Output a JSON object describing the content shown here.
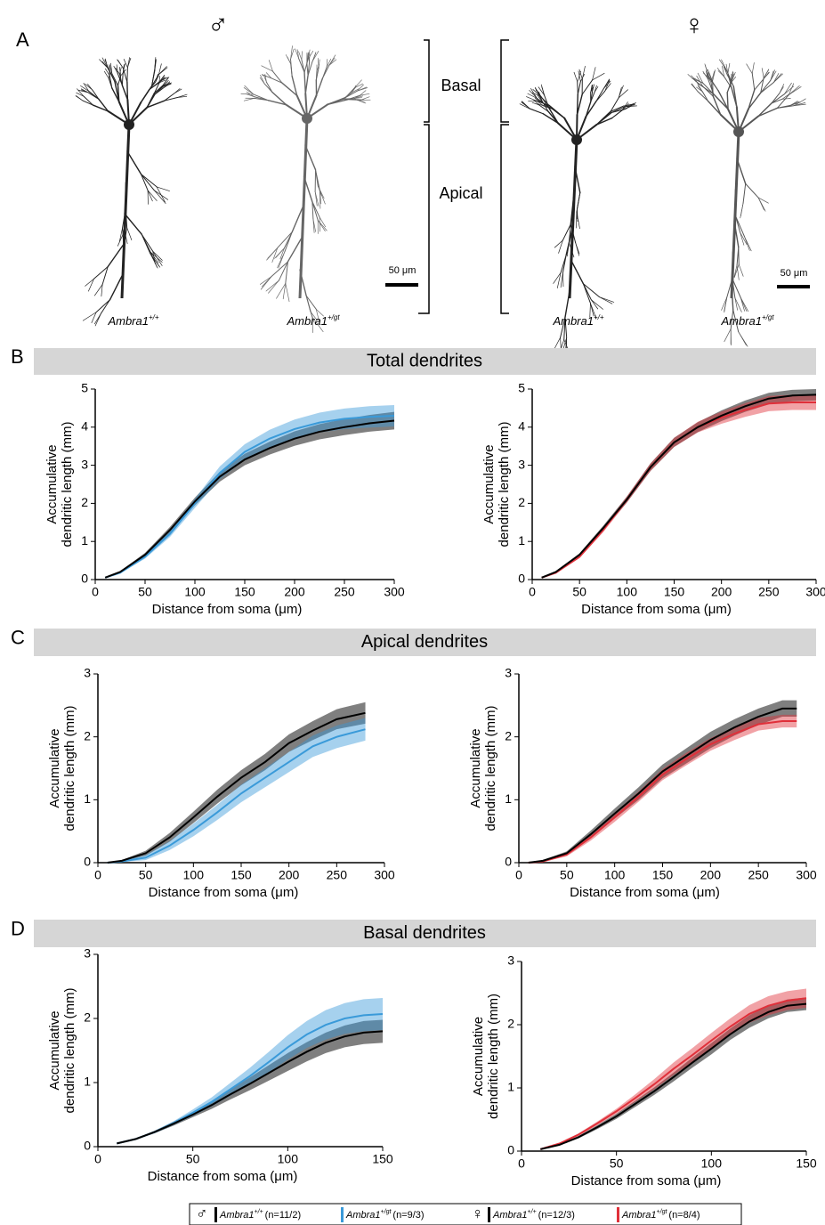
{
  "panel_a": {
    "label": "A",
    "male_symbol": "♂",
    "female_symbol": "♀",
    "regions": [
      "Basal",
      "Apical"
    ],
    "scale_bars": [
      "50 μm",
      "50 μm"
    ],
    "images": [
      {
        "name": "Ambra1",
        "genotype": "+/+"
      },
      {
        "name": "Ambra1",
        "genotype": "+/gt"
      },
      {
        "name": "Ambra1",
        "genotype": "+/+"
      },
      {
        "name": "Ambra1",
        "genotype": "+/gt"
      }
    ]
  },
  "sections": [
    {
      "label": "B",
      "title": "Total dendrites"
    },
    {
      "label": "C",
      "title": "Apical dendrites"
    },
    {
      "label": "D",
      "title": "Basal dendrites"
    }
  ],
  "legend": {
    "groups": [
      {
        "symbol": "♂",
        "entries": [
          {
            "name": "Ambra1",
            "genotype": "+/+",
            "n": "(n=11/2)",
            "color": "#000000"
          },
          {
            "name": "Ambra1",
            "genotype": "+/gt",
            "n": "(n=9/3)",
            "color": "#3a9ad9"
          }
        ]
      },
      {
        "symbol": "♀",
        "entries": [
          {
            "name": "Ambra1",
            "genotype": "+/+",
            "n": "(n=12/3)",
            "color": "#000000"
          },
          {
            "name": "Ambra1",
            "genotype": "+/gt",
            "n": "(n=8/4)",
            "color": "#e0303a"
          }
        ]
      }
    ]
  },
  "chart_data": [
    {
      "type": "line",
      "x": [
        10,
        25,
        50,
        75,
        100,
        125,
        150,
        175,
        200,
        225,
        250,
        275,
        300
      ],
      "xlim": [
        0,
        300
      ],
      "xticks": [
        0,
        50,
        100,
        150,
        200,
        250,
        300
      ],
      "ylim": [
        0,
        5
      ],
      "yticks": [
        0,
        1,
        2,
        3,
        4,
        5
      ],
      "x_label": "Distance from soma (μm)",
      "y_label": [
        "Accumulative",
        "dendritic length (mm)"
      ],
      "series": [
        {
          "color": "#000000",
          "values": [
            0.05,
            0.2,
            0.65,
            1.3,
            2.05,
            2.7,
            3.15,
            3.45,
            3.7,
            3.88,
            4.0,
            4.1,
            4.17
          ],
          "errors": [
            0.01,
            0.02,
            0.05,
            0.08,
            0.1,
            0.13,
            0.15,
            0.17,
            0.19,
            0.2,
            0.21,
            0.22,
            0.23
          ]
        },
        {
          "color": "#3a9ad9",
          "values": [
            0.05,
            0.18,
            0.6,
            1.2,
            2.0,
            2.8,
            3.35,
            3.7,
            3.95,
            4.12,
            4.22,
            4.27,
            4.3
          ],
          "errors": [
            0.01,
            0.02,
            0.05,
            0.08,
            0.12,
            0.17,
            0.2,
            0.23,
            0.25,
            0.26,
            0.27,
            0.28,
            0.28
          ]
        }
      ]
    },
    {
      "type": "line",
      "x": [
        10,
        25,
        50,
        75,
        100,
        125,
        150,
        175,
        200,
        225,
        250,
        275,
        300
      ],
      "xlim": [
        0,
        300
      ],
      "xticks": [
        0,
        50,
        100,
        150,
        200,
        250,
        300
      ],
      "ylim": [
        0,
        5
      ],
      "yticks": [
        0,
        1,
        2,
        3,
        4,
        5
      ],
      "x_label": "Distance from soma (μm)",
      "y_label": [
        "Accumulative",
        "dendritic length (mm)"
      ],
      "series": [
        {
          "color": "#000000",
          "values": [
            0.05,
            0.2,
            0.65,
            1.35,
            2.1,
            2.95,
            3.6,
            4.0,
            4.3,
            4.55,
            4.75,
            4.83,
            4.85
          ],
          "errors": [
            0.01,
            0.02,
            0.04,
            0.06,
            0.08,
            0.1,
            0.12,
            0.13,
            0.14,
            0.15,
            0.15,
            0.15,
            0.15
          ]
        },
        {
          "color": "#e0303a",
          "values": [
            0.05,
            0.18,
            0.6,
            1.3,
            2.1,
            2.95,
            3.6,
            4.0,
            4.25,
            4.45,
            4.62,
            4.65,
            4.65
          ],
          "errors": [
            0.01,
            0.02,
            0.04,
            0.06,
            0.08,
            0.1,
            0.12,
            0.14,
            0.16,
            0.18,
            0.2,
            0.2,
            0.2
          ]
        }
      ]
    },
    {
      "type": "line",
      "x": [
        10,
        25,
        50,
        75,
        100,
        125,
        150,
        175,
        200,
        225,
        250,
        280
      ],
      "xlim": [
        0,
        300
      ],
      "xticks": [
        0,
        50,
        100,
        150,
        200,
        250,
        300
      ],
      "ylim": [
        0,
        3
      ],
      "yticks": [
        0,
        1,
        2,
        3
      ],
      "x_label": "Distance from soma (μm)",
      "y_label": [
        "Accumulative",
        "dendritic length (mm)"
      ],
      "series": [
        {
          "color": "#000000",
          "values": [
            0,
            0.03,
            0.15,
            0.4,
            0.72,
            1.05,
            1.35,
            1.6,
            1.9,
            2.1,
            2.28,
            2.38
          ],
          "errors": [
            0,
            0.01,
            0.04,
            0.07,
            0.09,
            0.11,
            0.12,
            0.13,
            0.14,
            0.15,
            0.16,
            0.17
          ]
        },
        {
          "color": "#3a9ad9",
          "values": [
            0,
            0.02,
            0.08,
            0.27,
            0.52,
            0.8,
            1.1,
            1.35,
            1.6,
            1.85,
            2.0,
            2.12
          ],
          "errors": [
            0,
            0.01,
            0.04,
            0.07,
            0.1,
            0.12,
            0.14,
            0.15,
            0.16,
            0.17,
            0.18,
            0.18
          ]
        }
      ]
    },
    {
      "type": "line",
      "x": [
        10,
        25,
        50,
        75,
        100,
        125,
        150,
        175,
        200,
        225,
        250,
        275,
        290
      ],
      "xlim": [
        0,
        300
      ],
      "xticks": [
        0,
        50,
        100,
        150,
        200,
        250,
        300
      ],
      "ylim": [
        0,
        3
      ],
      "yticks": [
        0,
        1,
        2,
        3
      ],
      "x_label": "Distance from soma (μm)",
      "y_label": [
        "Accumulative",
        "dendritic length (mm)"
      ],
      "series": [
        {
          "color": "#000000",
          "values": [
            0,
            0.03,
            0.15,
            0.45,
            0.78,
            1.1,
            1.45,
            1.7,
            1.95,
            2.15,
            2.32,
            2.45,
            2.45
          ],
          "errors": [
            0,
            0.01,
            0.03,
            0.06,
            0.08,
            0.1,
            0.11,
            0.12,
            0.13,
            0.13,
            0.13,
            0.13,
            0.13
          ]
        },
        {
          "color": "#e0303a",
          "values": [
            0,
            0.02,
            0.13,
            0.4,
            0.72,
            1.05,
            1.4,
            1.65,
            1.88,
            2.05,
            2.2,
            2.25,
            2.25
          ],
          "errors": [
            0,
            0.01,
            0.03,
            0.05,
            0.07,
            0.08,
            0.09,
            0.1,
            0.1,
            0.1,
            0.1,
            0.1,
            0.1
          ]
        }
      ]
    },
    {
      "type": "line",
      "x": [
        10,
        20,
        30,
        40,
        50,
        60,
        70,
        80,
        90,
        100,
        110,
        120,
        130,
        140,
        150
      ],
      "xlim": [
        0,
        150
      ],
      "xticks": [
        0,
        50,
        100,
        150
      ],
      "ylim": [
        0,
        3
      ],
      "yticks": [
        0,
        1,
        2,
        3
      ],
      "x_label": "Distance from soma (μm)",
      "y_label": [
        "Accumulative",
        "dendritic length (mm)"
      ],
      "series": [
        {
          "color": "#000000",
          "values": [
            0.05,
            0.12,
            0.23,
            0.36,
            0.5,
            0.65,
            0.82,
            0.98,
            1.15,
            1.32,
            1.48,
            1.62,
            1.72,
            1.78,
            1.8
          ],
          "errors": [
            0.01,
            0.01,
            0.02,
            0.03,
            0.04,
            0.06,
            0.08,
            0.1,
            0.12,
            0.14,
            0.15,
            0.16,
            0.17,
            0.18,
            0.18
          ]
        },
        {
          "color": "#3a9ad9",
          "values": [
            0.05,
            0.12,
            0.23,
            0.37,
            0.53,
            0.7,
            0.9,
            1.1,
            1.32,
            1.55,
            1.75,
            1.9,
            2.0,
            2.05,
            2.07
          ],
          "errors": [
            0.01,
            0.01,
            0.02,
            0.03,
            0.05,
            0.07,
            0.1,
            0.13,
            0.16,
            0.19,
            0.21,
            0.23,
            0.24,
            0.25,
            0.25
          ]
        }
      ]
    },
    {
      "type": "line",
      "x": [
        10,
        20,
        30,
        40,
        50,
        60,
        70,
        80,
        90,
        100,
        110,
        120,
        130,
        140,
        150
      ],
      "xlim": [
        0,
        150
      ],
      "xticks": [
        0,
        50,
        100,
        150
      ],
      "ylim": [
        0,
        3
      ],
      "yticks": [
        0,
        1,
        2,
        3
      ],
      "x_label": "Distance from soma (μm)",
      "y_label": [
        "Accumulative",
        "dendritic length (mm)"
      ],
      "series": [
        {
          "color": "#000000",
          "values": [
            0.03,
            0.1,
            0.22,
            0.38,
            0.55,
            0.75,
            0.95,
            1.17,
            1.4,
            1.62,
            1.85,
            2.05,
            2.2,
            2.3,
            2.33
          ],
          "errors": [
            0.01,
            0.01,
            0.02,
            0.03,
            0.04,
            0.05,
            0.06,
            0.07,
            0.08,
            0.09,
            0.09,
            0.1,
            0.1,
            0.1,
            0.1
          ]
        },
        {
          "color": "#e0303a",
          "values": [
            0.03,
            0.12,
            0.26,
            0.44,
            0.63,
            0.84,
            1.06,
            1.3,
            1.52,
            1.75,
            1.97,
            2.17,
            2.3,
            2.38,
            2.42
          ],
          "errors": [
            0.01,
            0.01,
            0.02,
            0.03,
            0.04,
            0.06,
            0.08,
            0.1,
            0.11,
            0.12,
            0.13,
            0.14,
            0.15,
            0.15,
            0.15
          ]
        }
      ]
    }
  ]
}
